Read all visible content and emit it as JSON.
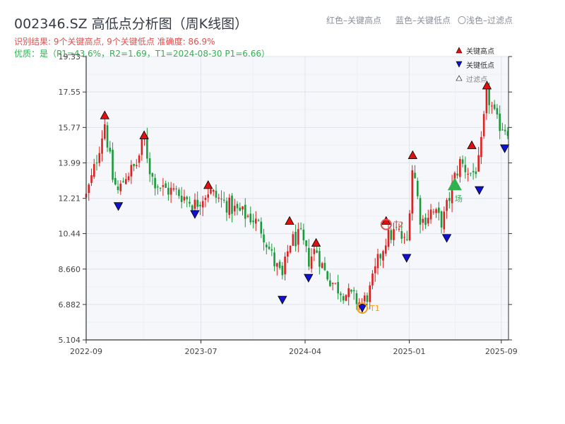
{
  "header": {
    "title": "002346.SZ 高低点分析图（周K线图）",
    "legend_text": {
      "red": "红色–关键高点",
      "blue": "蓝色–关键低点",
      "light": "〇浅色–过滤点"
    },
    "info_line": "识别结果: 9个关键高点, 9个关键低点  准确度: 86.9%",
    "quality_line": "优质：是（P1=43.6%，R2=1.69，T1=2024-08-30 P1=6.66）"
  },
  "legend": {
    "high": "关键高点",
    "low": "关键低点",
    "filtered": "过滤点"
  },
  "colors": {
    "up": "#e02020",
    "down": "#1a9a3a",
    "high_marker": "#e01010",
    "low_marker": "#1010d0",
    "info": "#e05050",
    "quality": "#30b050",
    "t_marker": "#f0a020",
    "grid": "#e0e4ea",
    "plot_bg": "#f5f7fa"
  },
  "chart_data": {
    "type": "candlestick",
    "title": "002346.SZ 高低点分析图（周K线图）",
    "y_ticks": [
      "5.104",
      "6.882",
      "8.660",
      "10.44",
      "12.21",
      "13.99",
      "15.77",
      "17.55",
      "19.33"
    ],
    "ylim": [
      5.104,
      19.33
    ],
    "x_ticks": [
      {
        "label": "2022-09",
        "date": "2022-09-01"
      },
      {
        "label": "2023-07",
        "date": "2023-07-01"
      },
      {
        "label": "2024-04",
        "date": "2024-04-01"
      },
      {
        "label": "2025-01",
        "date": "2025-01-01"
      },
      {
        "label": "2025-09",
        "date": "2025-09-01"
      }
    ],
    "x_range": [
      "2022-09-01",
      "2025-09-20"
    ],
    "close_path": [
      [
        "2022-09-01",
        12.3
      ],
      [
        "2022-09-20",
        13.5
      ],
      [
        "2022-10-20",
        16.0
      ],
      [
        "2022-11-10",
        13.2
      ],
      [
        "2022-11-25",
        12.5
      ],
      [
        "2022-12-15",
        13.4
      ],
      [
        "2023-01-10",
        13.8
      ],
      [
        "2023-02-01",
        15.2
      ],
      [
        "2023-02-20",
        13.3
      ],
      [
        "2023-03-20",
        12.7
      ],
      [
        "2023-05-01",
        12.5
      ],
      [
        "2023-06-15",
        11.9
      ],
      [
        "2023-07-20",
        12.6
      ],
      [
        "2023-08-15",
        12.2
      ],
      [
        "2023-10-01",
        11.6
      ],
      [
        "2023-11-15",
        11.2
      ],
      [
        "2023-12-10",
        10.6
      ],
      [
        "2024-01-10",
        9.0
      ],
      [
        "2024-02-01",
        8.2
      ],
      [
        "2024-02-20",
        10.0
      ],
      [
        "2024-03-20",
        10.3
      ],
      [
        "2024-04-10",
        9.1
      ],
      [
        "2024-04-30",
        9.7
      ],
      [
        "2024-05-20",
        8.6
      ],
      [
        "2024-06-20",
        7.8
      ],
      [
        "2024-07-20",
        7.4
      ],
      [
        "2024-08-30",
        6.9
      ],
      [
        "2024-09-20",
        7.6
      ],
      [
        "2024-10-10",
        9.0
      ],
      [
        "2024-11-01",
        10.2
      ],
      [
        "2024-12-01",
        10.6
      ],
      [
        "2024-12-25",
        9.8
      ],
      [
        "2025-01-10",
        14.0
      ],
      [
        "2025-02-01",
        11.0
      ],
      [
        "2025-03-01",
        11.6
      ],
      [
        "2025-03-30",
        11.0
      ],
      [
        "2025-04-30",
        13.2
      ],
      [
        "2025-05-15",
        14.0
      ],
      [
        "2025-06-15",
        13.4
      ],
      [
        "2025-07-05",
        14.0
      ],
      [
        "2025-07-25",
        17.5
      ],
      [
        "2025-08-20",
        16.0
      ],
      [
        "2025-09-20",
        15.7
      ]
    ],
    "key_highs": [
      {
        "date": "2022-10-20",
        "value": 16.2
      },
      {
        "date": "2023-02-01",
        "value": 15.2
      },
      {
        "date": "2023-07-20",
        "value": 12.7
      },
      {
        "date": "2024-02-20",
        "value": 10.9
      },
      {
        "date": "2024-04-30",
        "value": 9.8
      },
      {
        "date": "2024-11-01",
        "value": 10.9
      },
      {
        "date": "2025-01-10",
        "value": 14.2
      },
      {
        "date": "2025-06-15",
        "value": 14.7
      },
      {
        "date": "2025-07-25",
        "value": 17.7
      }
    ],
    "key_lows": [
      {
        "date": "2022-11-25",
        "value": 12.0
      },
      {
        "date": "2023-06-15",
        "value": 11.6
      },
      {
        "date": "2024-02-01",
        "value": 7.3
      },
      {
        "date": "2024-04-10",
        "value": 8.4
      },
      {
        "date": "2024-08-30",
        "value": 6.9
      },
      {
        "date": "2024-12-25",
        "value": 9.4
      },
      {
        "date": "2025-04-10",
        "value": 10.4
      },
      {
        "date": "2025-07-05",
        "value": 12.8
      },
      {
        "date": "2025-09-10",
        "value": 14.9
      }
    ],
    "t_points": [
      {
        "label": "T1",
        "date": "2024-08-30",
        "value": 6.7
      },
      {
        "label": "T2",
        "date": "2024-11-01",
        "value": 10.9
      }
    ],
    "signal": {
      "label": "场",
      "date": "2025-05-01",
      "value": 12.9
    }
  }
}
